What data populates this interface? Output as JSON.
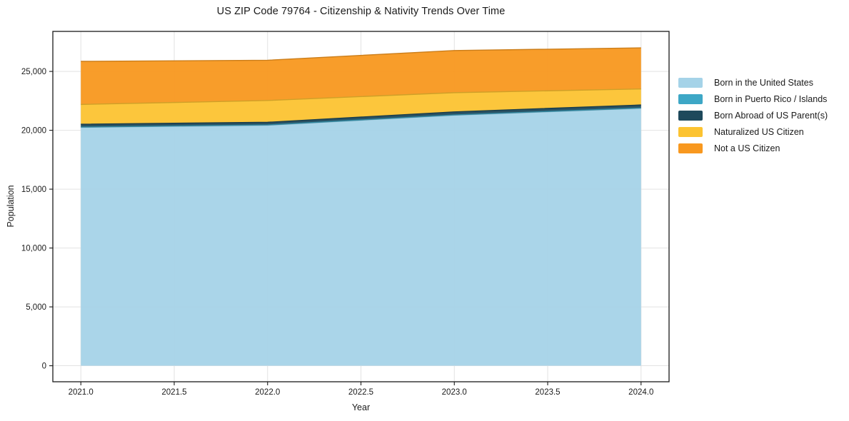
{
  "chart_data": {
    "type": "area",
    "stacked": true,
    "title": "US ZIP Code 79764 - Citizenship & Nativity Trends Over Time",
    "xlabel": "Year",
    "ylabel": "Population",
    "x": [
      2021,
      2022,
      2023,
      2024
    ],
    "series": [
      {
        "name": "Born in the United States",
        "color": "#a5d3e8",
        "values": [
          20250,
          20430,
          21280,
          21870
        ]
      },
      {
        "name": "Born in Puerto Rico / Islands",
        "color": "#3da7c6",
        "values": [
          25,
          25,
          25,
          25
        ]
      },
      {
        "name": "Born Abroad of US Parent(s)",
        "color": "#1e495c",
        "values": [
          240,
          225,
          260,
          255
        ]
      },
      {
        "name": "Naturalized US Citizen",
        "color": "#fcc331",
        "values": [
          1680,
          1850,
          1630,
          1360
        ]
      },
      {
        "name": "Not a US Citizen",
        "color": "#f8981f",
        "values": [
          3660,
          3420,
          3580,
          3490
        ]
      }
    ],
    "totals": [
      25855,
      25950,
      26775,
      27000
    ],
    "xticks": {
      "values": [
        2021.0,
        2021.5,
        2022.0,
        2022.5,
        2023.0,
        2023.5,
        2024.0
      ],
      "labels": [
        "2021.0",
        "2021.5",
        "2022.0",
        "2022.5",
        "2023.0",
        "2023.5",
        "2024.0"
      ]
    },
    "yticks": {
      "values": [
        0,
        5000,
        10000,
        15000,
        20000,
        25000
      ],
      "labels": [
        "0",
        "5,000",
        "10,000",
        "15,000",
        "20,000",
        "25,000"
      ]
    },
    "xlim": [
      2020.85,
      2024.15
    ],
    "ylim": [
      -1360,
      28400
    ],
    "grid": true,
    "legend_position": "right-of-plot",
    "colors": {
      "grid": "#e2e2e2",
      "spine": "#1a1a1a",
      "tick": "#1a1a1a",
      "background": "#ffffff"
    }
  }
}
